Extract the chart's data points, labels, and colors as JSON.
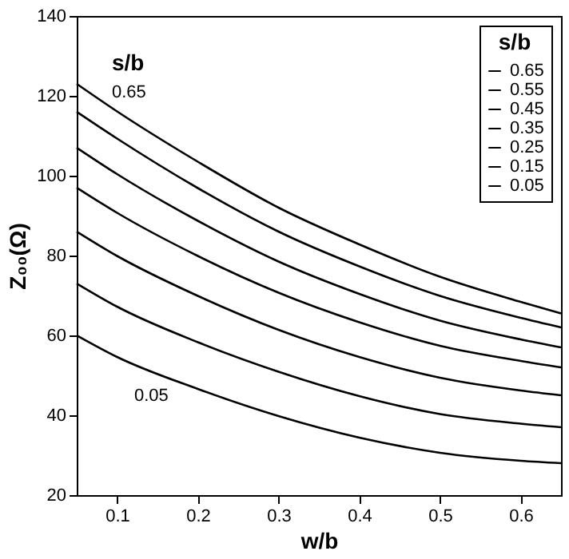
{
  "chart_data": {
    "type": "line",
    "xlabel": "w/b",
    "ylabel": "Z₀₀(Ω)",
    "legend_title": "s/b",
    "x": [
      0.05,
      0.1,
      0.2,
      0.3,
      0.4,
      0.5,
      0.6,
      0.65
    ],
    "series": [
      {
        "name": "0.65",
        "color": "#000000",
        "values": [
          123,
          116.1,
          103.5,
          92.0,
          82.8,
          74.7,
          68.4,
          65.5
        ]
      },
      {
        "name": "0.55",
        "color": "#000000",
        "values": [
          116,
          109.3,
          96.9,
          86.0,
          77.3,
          69.9,
          64.4,
          62
        ]
      },
      {
        "name": "0.45",
        "color": "#000000",
        "values": [
          107,
          100.4,
          88.7,
          78.5,
          70.4,
          63.7,
          59,
          57
        ]
      },
      {
        "name": "0.35",
        "color": "#000000",
        "values": [
          97,
          90.7,
          79.9,
          70.7,
          63.3,
          57.4,
          53.6,
          52
        ]
      },
      {
        "name": "0.25",
        "color": "#000000",
        "values": [
          86,
          79.9,
          69.9,
          61.4,
          54.6,
          49.4,
          46.2,
          45
        ]
      },
      {
        "name": "0.15",
        "color": "#000000",
        "values": [
          73,
          67.2,
          58.3,
          50.9,
          44.8,
          40.3,
          37.9,
          37
        ]
      },
      {
        "name": "0.05",
        "color": "#000000",
        "values": [
          60,
          54.6,
          46.6,
          39.8,
          34.4,
          30.6,
          28.6,
          28
        ]
      }
    ],
    "annotations": [
      "s/b",
      "0.65",
      "0.05"
    ],
    "xlim": [
      0.05,
      0.65
    ],
    "xticks": [
      0.1,
      0.2,
      0.3,
      0.4,
      0.5,
      0.6
    ],
    "ylim": [
      20,
      140
    ],
    "yticks": [
      20,
      40,
      60,
      80,
      100,
      120,
      140
    ],
    "grid": false,
    "legend": "top right",
    "marker": "none",
    "line_style": "solid"
  }
}
